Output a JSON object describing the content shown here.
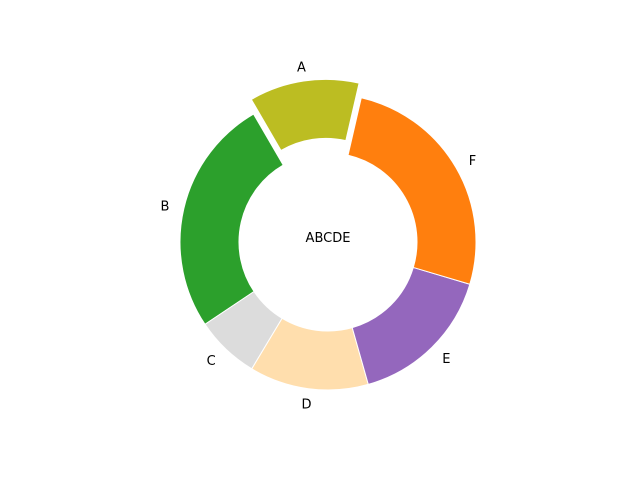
{
  "chart_data": {
    "type": "pie",
    "donut": true,
    "center_label": "ABCDE",
    "labels": [
      "A",
      "B",
      "C",
      "D",
      "E",
      "F"
    ],
    "values": [
      12,
      26,
      7,
      13,
      16,
      26
    ],
    "colors": [
      "#bcbd22",
      "#2ca02c",
      "#dcdcdc",
      "#ffdead",
      "#9467bd",
      "#ff7f0e"
    ],
    "explode": [
      0.1,
      0,
      0,
      0,
      0,
      0
    ],
    "start_angle_deg": 90,
    "counterclockwise": true,
    "first_slice_offset_deg": -13,
    "title": "",
    "legend": "none"
  }
}
